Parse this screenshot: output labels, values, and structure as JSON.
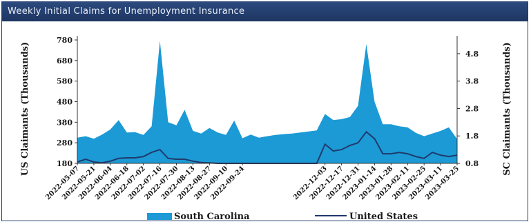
{
  "window": {
    "title": "Weekly Initial Claims for Unemployment Insurance"
  },
  "chart_data": {
    "type": "area",
    "title": "Weekly Initial Claims for Unemployment Insurance",
    "ylabel_left": "US Claimants (Thousands)",
    "ylabel_right": "SC Claimants (Thousands)",
    "ylim_left": [
      180,
      780
    ],
    "ylim_right": [
      0.8,
      5.3
    ],
    "yticks_left": [
      180,
      280,
      380,
      480,
      580,
      680,
      780
    ],
    "yticks_right": [
      0.8,
      1.8,
      2.8,
      3.8,
      4.8
    ],
    "tick_labels_right": [
      "0.8",
      "1.8",
      "2.8",
      "3.8",
      "4.8"
    ],
    "x": [
      "2022-05-07",
      "2022-05-14",
      "2022-05-21",
      "2022-05-28",
      "2022-06-04",
      "2022-06-11",
      "2022-06-18",
      "2022-06-25",
      "2022-07-02",
      "2022-07-09",
      "2022-07-16",
      "2022-07-23",
      "2022-07-30",
      "2022-08-06",
      "2022-08-13",
      "2022-08-20",
      "2022-08-27",
      "2022-09-03",
      "2022-09-10",
      "2022-09-17",
      "2022-09-24",
      "2022-10-01",
      "2022-10-08",
      "2022-10-15",
      "2022-10-22",
      "2022-10-29",
      "2022-11-05",
      "2022-11-12",
      "2022-11-19",
      "2022-11-26",
      "2022-12-03",
      "2022-12-10",
      "2022-12-17",
      "2022-12-24",
      "2022-12-31",
      "2023-01-07",
      "2023-01-14",
      "2023-01-21",
      "2023-01-28",
      "2023-02-04",
      "2023-02-11",
      "2023-02-18",
      "2023-02-25",
      "2023-03-04",
      "2023-03-11",
      "2023-03-18",
      "2023-03-25"
    ],
    "x_tick_labels": [
      "2022-05-07",
      "2022-05-21",
      "2022-06-04",
      "2022-06-18",
      "2022-07-02",
      "2022-07-16",
      "2022-07-30",
      "2022-08-13",
      "2022-08-27",
      "2022-09-10",
      "2022-09-24",
      "2022-12-03",
      "2022-12-17",
      "2022-12-31",
      "2023-01-14",
      "2023-01-28",
      "2023-02-11",
      "2023-02-25",
      "2023-03-11",
      "2023-03-25"
    ],
    "x_tick_indices": [
      0,
      2,
      4,
      6,
      8,
      10,
      12,
      14,
      16,
      18,
      20,
      30,
      32,
      34,
      36,
      38,
      40,
      42,
      44,
      46
    ],
    "series": [
      {
        "name": "South Carolina",
        "axis": "left",
        "style": "area",
        "color": "#1c9ad6",
        "values": [
          305,
          312,
          300,
          320,
          345,
          390,
          330,
          332,
          318,
          360,
          775,
          380,
          365,
          440,
          338,
          325,
          352,
          330,
          318,
          388,
          302,
          320,
          305,
          312,
          318,
          322,
          325,
          330,
          335,
          340,
          420,
          390,
          395,
          405,
          460,
          760,
          480,
          370,
          370,
          360,
          355,
          328,
          312,
          325,
          338,
          355,
          298
        ]
      },
      {
        "name": "United States",
        "axis": "right",
        "style": "line",
        "color": "#1f3a6b",
        "values": [
          0.85,
          0.95,
          0.85,
          0.82,
          0.88,
          0.98,
          1.0,
          1.0,
          1.05,
          1.2,
          1.3,
          0.98,
          0.95,
          0.95,
          0.88,
          0.83,
          0.82,
          0.8,
          0.8,
          0.8,
          0.8,
          0.8,
          0.8,
          0.8,
          0.8,
          0.8,
          0.8,
          0.8,
          0.8,
          0.8,
          1.5,
          1.25,
          1.3,
          1.45,
          1.55,
          1.95,
          1.7,
          1.15,
          1.15,
          1.2,
          1.15,
          1.05,
          0.98,
          1.2,
          1.1,
          1.05,
          1.1
        ]
      }
    ],
    "legend": {
      "placement": "bottom"
    },
    "grid": false
  }
}
